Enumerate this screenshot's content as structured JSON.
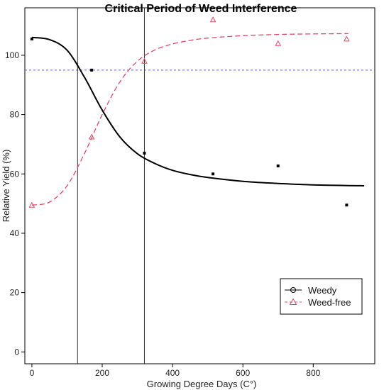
{
  "chart_data": {
    "type": "scatter",
    "title": "Critical Period of Weed Interference",
    "xlabel": "Growing Degree Days (C°)",
    "ylabel": "Relative Yield (%)",
    "xlim": [
      -20,
      975
    ],
    "ylim": [
      -4,
      116
    ],
    "x_ticks": [
      "0",
      "200",
      "400",
      "600",
      "800"
    ],
    "y_ticks": [
      "0",
      "20",
      "40",
      "60",
      "80",
      "100"
    ],
    "grid": false,
    "legend_position": "bottom-right",
    "reference_lines": {
      "horizontal_y": 95,
      "vertical_x": [
        130,
        320
      ]
    },
    "series": [
      {
        "name": "Weedy",
        "color": "#000000",
        "line_style": "solid",
        "marker": "square",
        "points": {
          "x": [
            0,
            170,
            320,
            515,
            700,
            895
          ],
          "y": [
            105.5,
            95,
            67,
            60,
            62.7,
            49.5
          ]
        },
        "fitted_curve": {
          "x": [
            0,
            50,
            100,
            150,
            200,
            250,
            300,
            350,
            400,
            450,
            500,
            600,
            700,
            800,
            945
          ],
          "y": [
            106,
            105.3,
            101.7,
            92.5,
            81.5,
            72.5,
            66.8,
            63.5,
            61.2,
            59.8,
            58.8,
            57.5,
            56.8,
            56.3,
            56
          ]
        }
      },
      {
        "name": "Weed-free",
        "color": "#d84b6a",
        "line_style": "dashed",
        "marker": "triangle",
        "points": {
          "x": [
            0,
            170,
            320,
            515,
            700,
            895
          ],
          "y": [
            49.5,
            72.5,
            98,
            112,
            104,
            105.5
          ]
        },
        "fitted_curve": {
          "x": [
            0,
            50,
            100,
            150,
            200,
            250,
            300,
            350,
            400,
            450,
            500,
            600,
            700,
            800,
            900
          ],
          "y": [
            49.5,
            50.5,
            56,
            67,
            80,
            91,
            98,
            101.8,
            103.8,
            105,
            105.8,
            106.6,
            107,
            107.2,
            107.3
          ]
        }
      }
    ]
  }
}
